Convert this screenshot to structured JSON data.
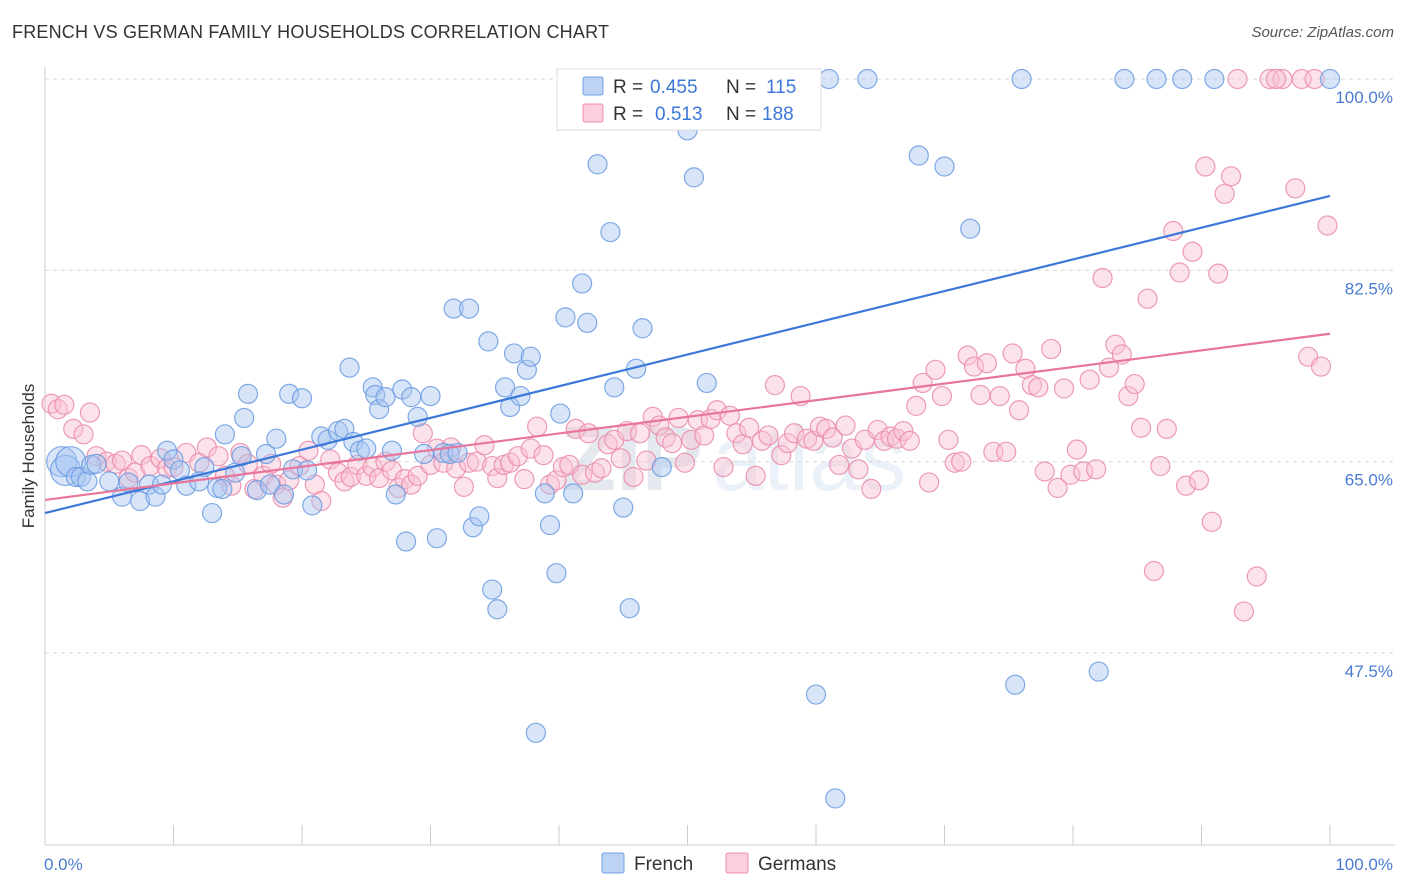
{
  "header": {
    "title": "FRENCH VS GERMAN FAMILY HOUSEHOLDS CORRELATION CHART",
    "source": "Source: ZipAtlas.com"
  },
  "watermark": {
    "part1": "ZIP",
    "part2": "atlas"
  },
  "legend_box": {
    "rows": [
      {
        "r_label": "R =",
        "r_value": "0.455",
        "n_label": "N =",
        "n_value": "115",
        "color": "#6fa0e6"
      },
      {
        "r_label": "R =",
        "r_value": "0.513",
        "n_label": "N =",
        "n_value": "188",
        "color": "#f08cac"
      }
    ]
  },
  "bottom_legend": {
    "items": [
      {
        "label": "French",
        "color": "#6fa0e6"
      },
      {
        "label": "Germans",
        "color": "#f08cac"
      }
    ]
  },
  "chart_data": {
    "type": "scatter",
    "xlabel": "",
    "ylabel": "Family Households",
    "xlim": [
      0,
      100
    ],
    "ylim": [
      30,
      101
    ],
    "x_tick_labels": [
      "0.0%",
      "100.0%"
    ],
    "y_tick_labels": [
      "100.0%",
      "82.5%",
      "65.0%",
      "47.5%"
    ],
    "y_ticks": [
      100,
      82.5,
      65,
      47.5
    ],
    "grid": true,
    "legend_position": "top-center",
    "colors": {
      "french": "#3c78d8",
      "germans": "#e8759a"
    },
    "series": [
      {
        "name": "French",
        "trend": [
          [
            0,
            60.3
          ],
          [
            100,
            89.3
          ]
        ],
        "points": [
          [
            1.3,
            65.0
          ],
          [
            1.6,
            64.2
          ],
          [
            2.0,
            65.0
          ],
          [
            2.4,
            63.6
          ],
          [
            2.8,
            63.6
          ],
          [
            3.3,
            63.2
          ],
          [
            3.6,
            64.7
          ],
          [
            4.0,
            64.8
          ],
          [
            5.0,
            63.2
          ],
          [
            6.0,
            61.8
          ],
          [
            6.5,
            63.1
          ],
          [
            7.4,
            61.4
          ],
          [
            8.1,
            62.9
          ],
          [
            8.6,
            61.8
          ],
          [
            9.1,
            62.9
          ],
          [
            9.5,
            66.0
          ],
          [
            10.0,
            65.2
          ],
          [
            10.5,
            64.2
          ],
          [
            11.0,
            62.8
          ],
          [
            12.4,
            64.5
          ],
          [
            12.0,
            63.2
          ],
          [
            13.0,
            60.3
          ],
          [
            13.4,
            62.6
          ],
          [
            13.8,
            62.5
          ],
          [
            14.0,
            67.5
          ],
          [
            14.8,
            64.0
          ],
          [
            15.3,
            65.5
          ],
          [
            15.5,
            69.0
          ],
          [
            15.8,
            71.2
          ],
          [
            16.5,
            62.4
          ],
          [
            17.2,
            65.7
          ],
          [
            17.5,
            62.9
          ],
          [
            18.0,
            67.1
          ],
          [
            18.6,
            62.0
          ],
          [
            19.0,
            71.2
          ],
          [
            19.3,
            64.3
          ],
          [
            20.0,
            70.8
          ],
          [
            20.4,
            64.2
          ],
          [
            20.8,
            61.0
          ],
          [
            21.5,
            67.3
          ],
          [
            22.0,
            67.0
          ],
          [
            22.8,
            67.8
          ],
          [
            23.3,
            68.0
          ],
          [
            23.7,
            73.6
          ],
          [
            24.0,
            66.8
          ],
          [
            24.5,
            66.0
          ],
          [
            25.0,
            66.2
          ],
          [
            25.5,
            71.8
          ],
          [
            25.7,
            71.1
          ],
          [
            26.0,
            69.8
          ],
          [
            26.5,
            70.9
          ],
          [
            27.0,
            66.0
          ],
          [
            27.3,
            62.0
          ],
          [
            27.8,
            71.6
          ],
          [
            28.1,
            57.7
          ],
          [
            28.5,
            70.9
          ],
          [
            29.0,
            69.1
          ],
          [
            29.5,
            65.7
          ],
          [
            30.0,
            71.0
          ],
          [
            30.5,
            58.0
          ],
          [
            31.0,
            65.8
          ],
          [
            31.5,
            65.7
          ],
          [
            31.8,
            79.0
          ],
          [
            32.1,
            65.8
          ],
          [
            33.0,
            79.0
          ],
          [
            33.3,
            59.0
          ],
          [
            33.8,
            60.0
          ],
          [
            34.5,
            76.0
          ],
          [
            34.8,
            53.3
          ],
          [
            35.2,
            51.5
          ],
          [
            35.8,
            71.8
          ],
          [
            36.2,
            70.0
          ],
          [
            36.5,
            74.9
          ],
          [
            37.0,
            71.0
          ],
          [
            37.5,
            73.4
          ],
          [
            37.8,
            74.6
          ],
          [
            38.2,
            40.2
          ],
          [
            38.9,
            62.1
          ],
          [
            39.3,
            59.2
          ],
          [
            39.8,
            54.8
          ],
          [
            40.1,
            69.4
          ],
          [
            40.5,
            78.2
          ],
          [
            41.1,
            62.1
          ],
          [
            41.8,
            81.3
          ],
          [
            42.2,
            77.7
          ],
          [
            43.0,
            92.2
          ],
          [
            43.5,
            100.0
          ],
          [
            44.0,
            86.0
          ],
          [
            44.3,
            71.8
          ],
          [
            45.0,
            60.8
          ],
          [
            45.5,
            51.6
          ],
          [
            46.0,
            73.5
          ],
          [
            46.5,
            77.2
          ],
          [
            46.9,
            100.0
          ],
          [
            48.0,
            64.5
          ],
          [
            50.0,
            95.3
          ],
          [
            50.5,
            91.0
          ],
          [
            51.5,
            72.2
          ],
          [
            53.0,
            100.0
          ],
          [
            55.5,
            100.0
          ],
          [
            60.0,
            43.7
          ],
          [
            61.0,
            100.0
          ],
          [
            61.5,
            34.2
          ],
          [
            64.0,
            100.0
          ],
          [
            68.0,
            93.0
          ],
          [
            70.0,
            92.0
          ],
          [
            72.0,
            86.3
          ],
          [
            75.5,
            44.6
          ],
          [
            76.0,
            100.0
          ],
          [
            82.0,
            45.8
          ],
          [
            84.0,
            100.0
          ],
          [
            86.5,
            100.0
          ],
          [
            88.5,
            100.0
          ],
          [
            91.0,
            100.0
          ],
          [
            100.0,
            100.0
          ]
        ]
      },
      {
        "name": "Germans",
        "trend": [
          [
            0,
            61.5
          ],
          [
            100,
            76.7
          ]
        ],
        "points": [
          [
            0.5,
            70.3
          ],
          [
            1.0,
            69.8
          ],
          [
            1.5,
            70.2
          ],
          [
            2.2,
            68.0
          ],
          [
            3.0,
            67.5
          ],
          [
            3.5,
            69.5
          ],
          [
            4.0,
            65.5
          ],
          [
            4.8,
            65.0
          ],
          [
            5.5,
            64.8
          ],
          [
            6.0,
            65.1
          ],
          [
            6.5,
            63.5
          ],
          [
            7.0,
            64.0
          ],
          [
            7.5,
            65.6
          ],
          [
            8.2,
            64.6
          ],
          [
            9.0,
            65.3
          ],
          [
            9.5,
            64.4
          ],
          [
            10.0,
            64.5
          ],
          [
            11.0,
            65.8
          ],
          [
            12.0,
            64.9
          ],
          [
            12.6,
            66.3
          ],
          [
            13.5,
            65.5
          ],
          [
            14.0,
            63.7
          ],
          [
            14.5,
            62.8
          ],
          [
            15.2,
            65.8
          ],
          [
            15.8,
            64.8
          ],
          [
            16.3,
            62.5
          ],
          [
            17.0,
            63.7
          ],
          [
            17.6,
            64.8
          ],
          [
            18.0,
            62.9
          ],
          [
            18.5,
            61.7
          ],
          [
            19.0,
            63.3
          ],
          [
            19.8,
            64.6
          ],
          [
            20.5,
            66.0
          ],
          [
            21.0,
            62.9
          ],
          [
            21.5,
            61.4
          ],
          [
            22.2,
            65.2
          ],
          [
            22.8,
            64.0
          ],
          [
            23.3,
            63.2
          ],
          [
            23.8,
            63.6
          ],
          [
            24.3,
            64.7
          ],
          [
            25.0,
            63.7
          ],
          [
            25.5,
            64.5
          ],
          [
            26.0,
            63.5
          ],
          [
            26.5,
            65.0
          ],
          [
            27.0,
            64.2
          ],
          [
            27.5,
            62.6
          ],
          [
            28.0,
            63.4
          ],
          [
            28.5,
            62.9
          ],
          [
            29.0,
            63.7
          ],
          [
            29.4,
            67.6
          ],
          [
            30.0,
            64.7
          ],
          [
            30.5,
            66.2
          ],
          [
            31.0,
            64.9
          ],
          [
            31.6,
            66.3
          ],
          [
            32.0,
            64.4
          ],
          [
            32.6,
            62.7
          ],
          [
            33.0,
            64.9
          ],
          [
            33.6,
            65.0
          ],
          [
            34.2,
            66.5
          ],
          [
            34.8,
            64.6
          ],
          [
            35.2,
            63.5
          ],
          [
            35.7,
            64.7
          ],
          [
            36.2,
            64.9
          ],
          [
            36.8,
            65.5
          ],
          [
            37.3,
            63.4
          ],
          [
            37.8,
            66.2
          ],
          [
            38.3,
            68.2
          ],
          [
            38.8,
            65.6
          ],
          [
            39.3,
            62.9
          ],
          [
            39.8,
            63.3
          ],
          [
            40.3,
            64.5
          ],
          [
            40.8,
            64.7
          ],
          [
            41.3,
            68.0
          ],
          [
            41.8,
            63.8
          ],
          [
            42.3,
            67.6
          ],
          [
            42.8,
            64.0
          ],
          [
            43.3,
            64.4
          ],
          [
            43.8,
            66.6
          ],
          [
            44.3,
            67.0
          ],
          [
            44.8,
            65.3
          ],
          [
            45.3,
            67.8
          ],
          [
            45.8,
            63.6
          ],
          [
            46.3,
            67.6
          ],
          [
            46.8,
            65.1
          ],
          [
            47.3,
            69.1
          ],
          [
            47.8,
            68.3
          ],
          [
            48.3,
            67.2
          ],
          [
            48.8,
            66.7
          ],
          [
            49.3,
            69.0
          ],
          [
            49.8,
            64.9
          ],
          [
            50.3,
            67.0
          ],
          [
            50.8,
            68.8
          ],
          [
            51.3,
            67.4
          ],
          [
            51.8,
            68.9
          ],
          [
            52.3,
            69.7
          ],
          [
            52.8,
            64.5
          ],
          [
            53.3,
            69.2
          ],
          [
            53.8,
            67.6
          ],
          [
            54.3,
            66.6
          ],
          [
            54.8,
            68.1
          ],
          [
            55.3,
            63.7
          ],
          [
            55.8,
            66.9
          ],
          [
            56.3,
            67.4
          ],
          [
            56.8,
            72.0
          ],
          [
            57.3,
            65.6
          ],
          [
            57.8,
            66.7
          ],
          [
            58.3,
            67.6
          ],
          [
            58.8,
            71.0
          ],
          [
            59.3,
            67.1
          ],
          [
            59.8,
            66.9
          ],
          [
            60.3,
            68.2
          ],
          [
            60.8,
            68.0
          ],
          [
            61.3,
            67.2
          ],
          [
            61.8,
            64.7
          ],
          [
            62.3,
            68.3
          ],
          [
            62.8,
            66.2
          ],
          [
            63.3,
            64.3
          ],
          [
            63.8,
            67.0
          ],
          [
            64.3,
            62.5
          ],
          [
            64.8,
            67.9
          ],
          [
            65.3,
            66.9
          ],
          [
            65.8,
            67.3
          ],
          [
            66.3,
            67.1
          ],
          [
            66.8,
            67.8
          ],
          [
            67.3,
            66.9
          ],
          [
            67.8,
            70.1
          ],
          [
            68.3,
            72.2
          ],
          [
            68.8,
            63.1
          ],
          [
            69.3,
            73.4
          ],
          [
            69.8,
            71.0
          ],
          [
            70.3,
            67.0
          ],
          [
            70.8,
            64.9
          ],
          [
            71.3,
            65.0
          ],
          [
            71.8,
            74.7
          ],
          [
            72.3,
            73.7
          ],
          [
            72.8,
            71.1
          ],
          [
            73.3,
            74.0
          ],
          [
            73.8,
            65.9
          ],
          [
            74.3,
            71.0
          ],
          [
            74.8,
            65.9
          ],
          [
            75.3,
            74.9
          ],
          [
            75.8,
            69.7
          ],
          [
            76.3,
            73.5
          ],
          [
            76.8,
            72.0
          ],
          [
            77.3,
            71.8
          ],
          [
            77.8,
            64.1
          ],
          [
            78.3,
            75.3
          ],
          [
            78.8,
            62.6
          ],
          [
            79.3,
            71.7
          ],
          [
            79.8,
            63.8
          ],
          [
            80.3,
            66.1
          ],
          [
            80.8,
            64.1
          ],
          [
            81.3,
            72.5
          ],
          [
            81.8,
            64.3
          ],
          [
            82.3,
            81.8
          ],
          [
            82.8,
            73.6
          ],
          [
            83.3,
            75.7
          ],
          [
            83.8,
            74.8
          ],
          [
            84.3,
            71.0
          ],
          [
            84.8,
            72.1
          ],
          [
            85.3,
            68.1
          ],
          [
            85.8,
            79.9
          ],
          [
            86.3,
            55.0
          ],
          [
            86.8,
            64.6
          ],
          [
            87.3,
            68.0
          ],
          [
            87.8,
            86.1
          ],
          [
            88.3,
            82.3
          ],
          [
            88.8,
            62.8
          ],
          [
            89.3,
            84.2
          ],
          [
            89.8,
            63.3
          ],
          [
            90.3,
            92.0
          ],
          [
            90.8,
            59.5
          ],
          [
            91.3,
            82.2
          ],
          [
            91.8,
            89.5
          ],
          [
            92.3,
            91.1
          ],
          [
            93.3,
            51.3
          ],
          [
            94.3,
            54.5
          ],
          [
            95.3,
            100.0
          ],
          [
            96.3,
            100.0
          ],
          [
            97.3,
            90.0
          ],
          [
            98.3,
            74.6
          ],
          [
            99.3,
            73.7
          ],
          [
            99.8,
            86.6
          ],
          [
            95.8,
            100.0
          ],
          [
            97.8,
            100.0
          ],
          [
            98.8,
            100.0
          ],
          [
            92.8,
            100.0
          ]
        ]
      }
    ]
  }
}
